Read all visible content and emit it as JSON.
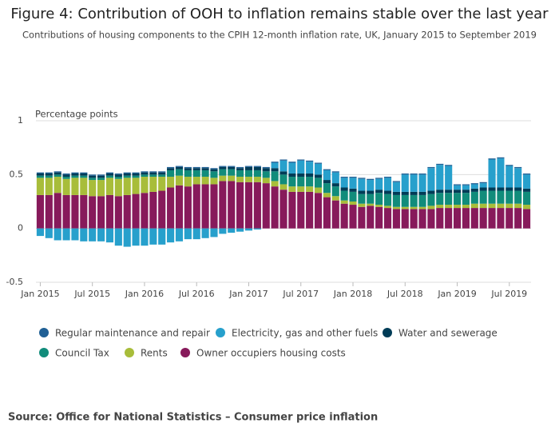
{
  "chart_data": {
    "type": "stacked-bar",
    "title": "Figure 4: Contribution of OOH to inflation remains stable over the last year",
    "subtitle": "Contributions of housing components to the CPIH 12-month inflation rate, UK, January 2015 to September 2019",
    "y_label": "Percentage points",
    "source": "Source: Office for National Statistics – Consumer price inflation",
    "categories": [
      "Jan 2015",
      null,
      null,
      null,
      null,
      null,
      "Jul 2015",
      null,
      null,
      null,
      null,
      null,
      "Jan 2016",
      null,
      null,
      null,
      null,
      null,
      "Jul 2016",
      null,
      null,
      null,
      null,
      null,
      "Jan 2017",
      null,
      null,
      null,
      null,
      null,
      "Jul 2017",
      null,
      null,
      null,
      null,
      null,
      "Jan 2018",
      null,
      null,
      null,
      null,
      null,
      "Jul 2018",
      null,
      null,
      null,
      null,
      null,
      "Jan 2019",
      null,
      null,
      null,
      null,
      null,
      "Jul 2019",
      null,
      null
    ],
    "ylim": [
      -0.5,
      1
    ],
    "yticks": [
      -0.5,
      0,
      0.5,
      1
    ],
    "grid": true,
    "series": [
      {
        "name": "Regular maintenance and repair",
        "color": "#206095",
        "values": [
          0.01,
          0.01,
          0.01,
          0.01,
          0.01,
          0.01,
          0.01,
          0.01,
          0.01,
          0.01,
          0.01,
          0.01,
          0.01,
          0.01,
          0.01,
          0.01,
          0.01,
          0.01,
          0.01,
          0.01,
          0.01,
          0.01,
          0.01,
          0.01,
          0.01,
          0.01,
          0.01,
          0.01,
          0.01,
          0.01,
          0.01,
          0.01,
          0.01,
          0.01,
          0.01,
          0.01,
          0.01,
          0.01,
          0.01,
          0.01,
          0.01,
          0.01,
          0.01,
          0.01,
          0.01,
          0.01,
          0.01,
          0.01,
          0.01,
          0.01,
          0.01,
          0.01,
          0.01,
          0.01,
          0.01,
          0.01,
          0.01
        ]
      },
      {
        "name": "Electricity, gas and other fuels",
        "color": "#27a0cc",
        "values": [
          -0.07,
          -0.09,
          -0.11,
          -0.11,
          -0.11,
          -0.12,
          -0.12,
          -0.12,
          -0.13,
          -0.16,
          -0.17,
          -0.16,
          -0.16,
          -0.15,
          -0.15,
          -0.13,
          -0.12,
          -0.1,
          -0.1,
          -0.09,
          -0.08,
          -0.05,
          -0.04,
          -0.03,
          -0.02,
          -0.01,
          0,
          0.05,
          0.1,
          0.1,
          0.12,
          0.11,
          0.1,
          0.09,
          0.1,
          0.09,
          0.1,
          0.11,
          0.1,
          0.1,
          0.12,
          0.09,
          0.16,
          0.16,
          0.16,
          0.21,
          0.23,
          0.22,
          0.04,
          0.04,
          0.04,
          0.04,
          0.26,
          0.27,
          0.2,
          0.18,
          0.13
        ]
      },
      {
        "name": "Water and sewerage",
        "color": "#003c57",
        "values": [
          0.02,
          0.02,
          0.02,
          0.02,
          0.02,
          0.02,
          0.02,
          0.02,
          0.02,
          0.02,
          0.02,
          0.02,
          0.02,
          0.02,
          0.02,
          0.02,
          0.02,
          0.02,
          0.02,
          0.02,
          0.02,
          0.02,
          0.02,
          0.02,
          0.03,
          0.03,
          0.03,
          0.03,
          0.03,
          0.03,
          0.03,
          0.03,
          0.03,
          0.03,
          0.03,
          0.03,
          0.03,
          0.03,
          0.03,
          0.03,
          0.03,
          0.03,
          0.03,
          0.03,
          0.03,
          0.03,
          0.03,
          0.03,
          0.03,
          0.03,
          0.03,
          0.03,
          0.03,
          0.03,
          0.03,
          0.03,
          0.03
        ]
      },
      {
        "name": "Council Tax",
        "color": "#118c7b",
        "values": [
          0.02,
          0.02,
          0.02,
          0.02,
          0.02,
          0.02,
          0.02,
          0.02,
          0.02,
          0.02,
          0.02,
          0.02,
          0.02,
          0.02,
          0.02,
          0.06,
          0.06,
          0.06,
          0.06,
          0.06,
          0.06,
          0.06,
          0.06,
          0.06,
          0.06,
          0.06,
          0.06,
          0.09,
          0.09,
          0.09,
          0.09,
          0.09,
          0.09,
          0.09,
          0.09,
          0.09,
          0.09,
          0.09,
          0.09,
          0.11,
          0.11,
          0.11,
          0.11,
          0.11,
          0.11,
          0.11,
          0.11,
          0.11,
          0.11,
          0.11,
          0.11,
          0.12,
          0.12,
          0.12,
          0.12,
          0.12,
          0.12
        ]
      },
      {
        "name": "Rents",
        "color": "#a8bd3a",
        "values": [
          0.16,
          0.16,
          0.15,
          0.15,
          0.16,
          0.16,
          0.15,
          0.15,
          0.16,
          0.16,
          0.16,
          0.15,
          0.15,
          0.14,
          0.13,
          0.1,
          0.09,
          0.09,
          0.07,
          0.07,
          0.06,
          0.05,
          0.05,
          0.05,
          0.05,
          0.05,
          0.05,
          0.05,
          0.05,
          0.05,
          0.05,
          0.05,
          0.05,
          0.04,
          0.04,
          0.03,
          0.03,
          0.03,
          0.02,
          0.02,
          0.02,
          0.02,
          0.02,
          0.02,
          0.02,
          0.03,
          0.03,
          0.03,
          0.03,
          0.03,
          0.04,
          0.04,
          0.04,
          0.04,
          0.04,
          0.04,
          0.04
        ]
      },
      {
        "name": "Owner occupiers housing costs",
        "color": "#871a5b",
        "values": [
          0.31,
          0.31,
          0.33,
          0.31,
          0.31,
          0.31,
          0.3,
          0.3,
          0.31,
          0.3,
          0.31,
          0.32,
          0.33,
          0.34,
          0.35,
          0.38,
          0.4,
          0.39,
          0.41,
          0.41,
          0.41,
          0.44,
          0.44,
          0.43,
          0.43,
          0.43,
          0.42,
          0.39,
          0.36,
          0.34,
          0.34,
          0.34,
          0.33,
          0.29,
          0.26,
          0.23,
          0.22,
          0.2,
          0.21,
          0.2,
          0.19,
          0.18,
          0.18,
          0.18,
          0.18,
          0.18,
          0.19,
          0.19,
          0.19,
          0.19,
          0.19,
          0.19,
          0.19,
          0.19,
          0.19,
          0.19,
          0.18
        ]
      }
    ]
  }
}
